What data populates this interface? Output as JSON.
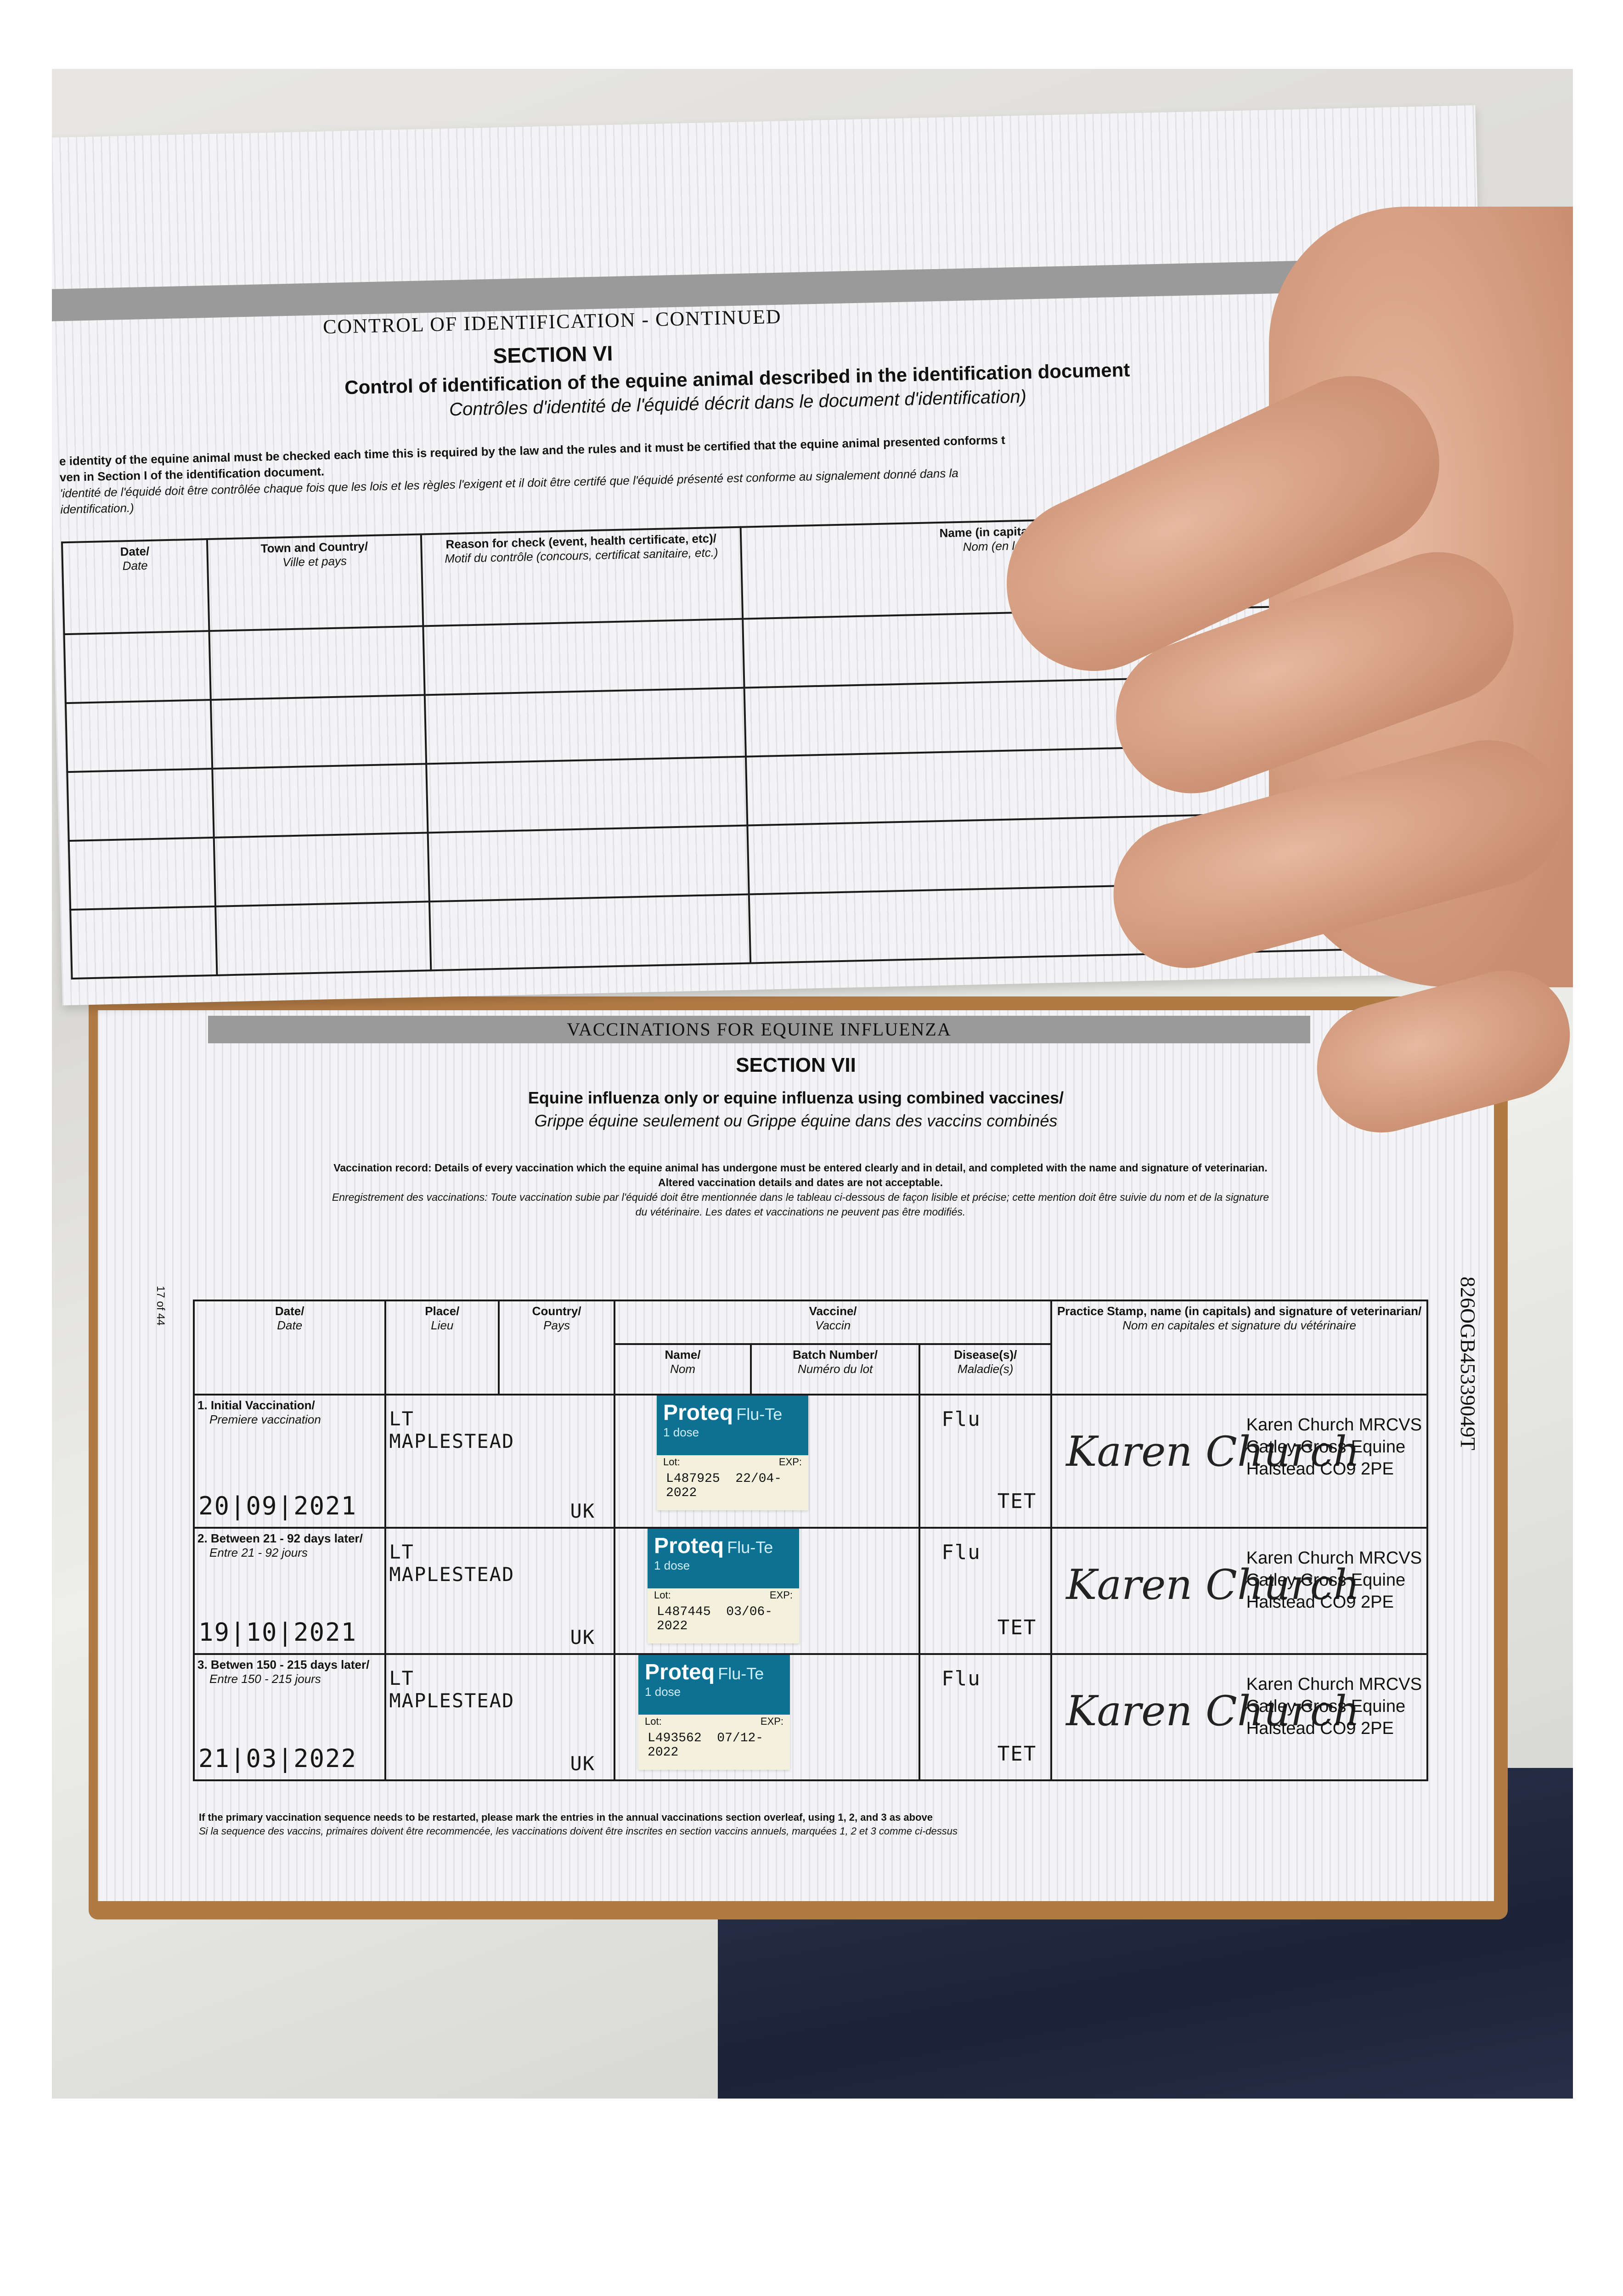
{
  "section_vi": {
    "band_title": "CONTROL OF IDENTIFICATION - CONTINUED",
    "section": "SECTION VI",
    "title": "Control of identification of the equine animal described in the identification document",
    "title_fr": "Contrôles d'identité de l'équidé décrit dans le document d'identification)",
    "instruction_1": "e identity of the equine animal must be checked each time this is required by the law and the rules and it must be certified that the equine animal presented conforms t",
    "instruction_2": "ven in Section I of the identification document.",
    "instruction_fr_1": "'identité de l'équidé doit être contrôlée chaque fois que les lois et les règles l'exigent et il doit être certifé que l'équidé présenté est conforme au signalement donné dans la",
    "instruction_fr_2": "identification.)",
    "columns": [
      {
        "en": "Date/",
        "fr": "Date"
      },
      {
        "en": "Town and Country/",
        "fr": "Ville et pays"
      },
      {
        "en": "Reason for check (event, health certificate, etc)/",
        "fr": "Motif du contrôle (concours, certificat sanitaire, etc.)"
      },
      {
        "en": "Name (in capital letters), capacity and signature of th",
        "fr": "Nom (en lettres capitales), qualité et signature d"
      }
    ]
  },
  "section_vii": {
    "band_title": "VACCINATIONS FOR EQUINE INFLUENZA",
    "section": "SECTION VII",
    "title": "Equine influenza only or equine influenza using combined vaccines/",
    "title_fr": "Grippe équine seulement ou Grippe équine dans des vaccins combinés",
    "record_1": "Vaccination record: Details of every vaccination which the equine animal has undergone must be entered clearly and in detail, and completed with the name and signature of veterinarian.",
    "record_2": "Altered vaccination details and dates are not acceptable.",
    "record_fr_1": "Enregistrement des vaccinations: Toute vaccination subie par l'équidé doit être mentionnée dans le tableau ci-dessous de façon lisible et précise; cette mention doit être suivie du nom et de la signature",
    "record_fr_2": "du vétérinaire. Les dates et vaccinations ne peuvent pas être modifiés.",
    "page_number": "17 of 44",
    "passport_number": "826OGB45339049T",
    "headers": {
      "date": {
        "en": "Date/",
        "fr": "Date"
      },
      "place": {
        "en": "Place/",
        "fr": "Lieu"
      },
      "country": {
        "en": "Country/",
        "fr": "Pays"
      },
      "vaccine": {
        "en": "Vaccine/",
        "fr": "Vaccin"
      },
      "name": {
        "en": "Name/",
        "fr": "Nom"
      },
      "batch": {
        "en": "Batch Number/",
        "fr": "Numéro du lot"
      },
      "disease": {
        "en": "Disease(s)/",
        "fr": "Maladie(s)"
      },
      "practice": {
        "en": "Practice Stamp, name (in capitals) and signature of veterinarian/",
        "fr": "Nom en capitales et signature du vétérinaire"
      }
    },
    "rows": [
      {
        "label": "1. Initial Vaccination/",
        "label_fr": "Premiere vaccination",
        "date": "20|09|2021",
        "place_1": "LT",
        "place_2": "MAPLESTEAD",
        "country": "UK",
        "vaccine_brand": "Proteq",
        "vaccine_product": "Flu-Te",
        "dose": "1 dose",
        "lot_label": "Lot:",
        "exp_label": "EXP:",
        "lot": "L487925",
        "exp": "22/04-2022",
        "disease_1": "Flu",
        "disease_2": "TET",
        "vet_name": "Karen Church MRCVS",
        "vet_practice": "Catley Cross Equine",
        "vet_address": "Halstead CO9 2PE",
        "signature": "Karen Church"
      },
      {
        "label": "2. Between 21 - 92 days later/",
        "label_fr": "Entre 21 - 92 jours",
        "date": "19|10|2021",
        "place_1": "LT",
        "place_2": "MAPLESTEAD",
        "country": "UK",
        "vaccine_brand": "Proteq",
        "vaccine_product": "Flu-Te",
        "dose": "1 dose",
        "lot_label": "Lot:",
        "exp_label": "EXP:",
        "lot": "L487445",
        "exp": "03/06-2022",
        "disease_1": "Flu",
        "disease_2": "TET",
        "vet_name": "Karen Church MRCVS",
        "vet_practice": "Catley Cross Equine",
        "vet_address": "Halstead CO9 2PE",
        "signature": "Karen Church"
      },
      {
        "label": "3. Betwen 150 - 215 days later/",
        "label_fr": "Entre 150 - 215 jours",
        "date": "21|03|2022",
        "place_1": "LT",
        "place_2": "MAPLESTEAD",
        "country": "UK",
        "vaccine_brand": "Proteq",
        "vaccine_product": "Flu-Te",
        "dose": "1 dose",
        "lot_label": "Lot:",
        "exp_label": "EXP:",
        "lot": "L493562",
        "exp": "07/12-2022",
        "disease_1": "Flu",
        "disease_2": "TET",
        "vet_name": "Karen Church MRCVS",
        "vet_practice": "Catley Cross Equine",
        "vet_address": "Halstead CO9 2PE",
        "signature": "Karen Church"
      }
    ],
    "footnote": "If the primary vaccination sequence needs to be restarted, please mark the entries in the annual vaccinations section overleaf, using 1, 2, and 3 as above",
    "footnote_fr": "Si la sequence des vaccins, primaires doivent être recommencée, les vaccinations doivent être inscrites en section vaccins annuels, marquées 1, 2 et 3 comme ci-dessus"
  },
  "colors": {
    "label_blue": "#0c7193",
    "label_cream": "#f3f0dc",
    "cover_brown": "#b07a45",
    "skin": "#d9a58a"
  }
}
